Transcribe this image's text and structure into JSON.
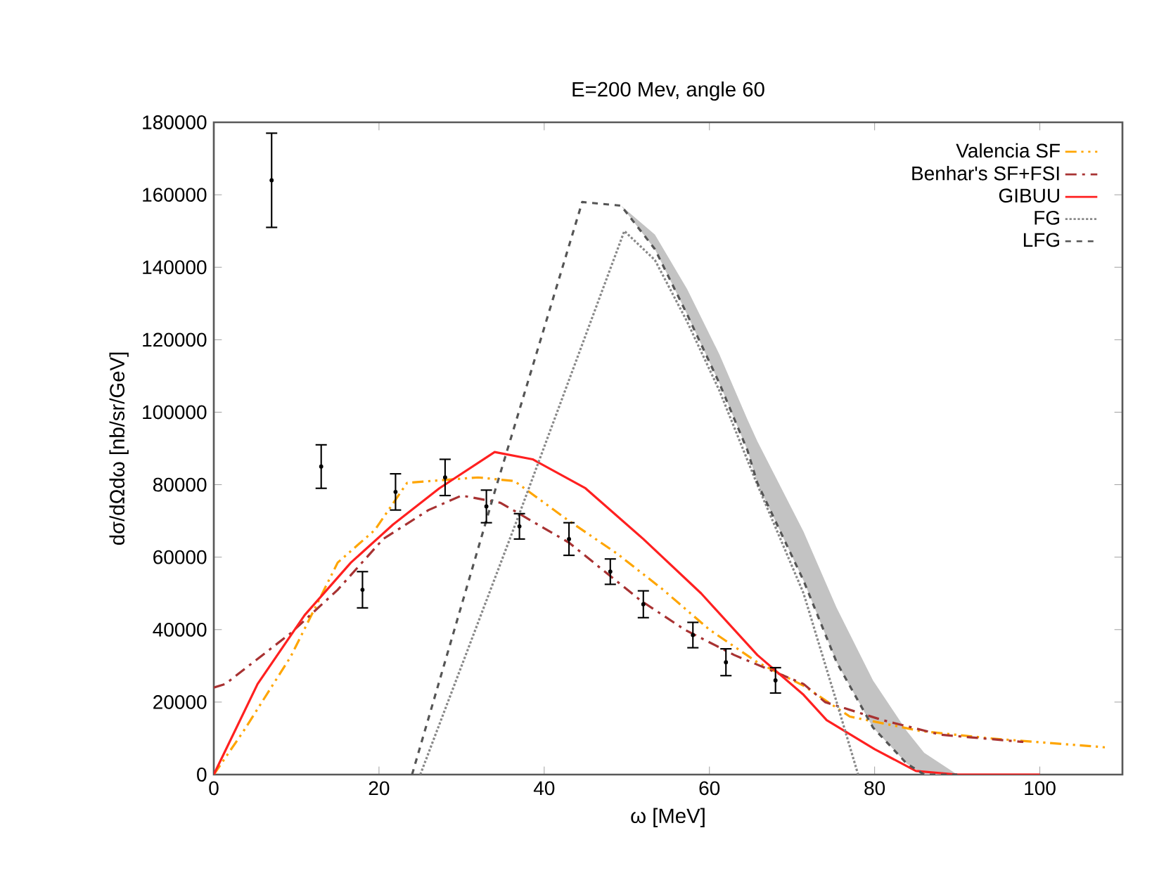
{
  "chart_data": {
    "type": "line",
    "title": "E=200 Mev, angle 60",
    "xlabel": "ω [MeV]",
    "ylabel": "dσ/dΩdω [nb/sr/GeV]",
    "xlim": [
      0,
      110
    ],
    "ylim": [
      0,
      180000
    ],
    "xticks": [
      0,
      20,
      40,
      60,
      80,
      100
    ],
    "yticks": [
      0,
      20000,
      40000,
      60000,
      80000,
      100000,
      120000,
      140000,
      160000,
      180000
    ],
    "legend": "top right",
    "grid": false,
    "series": [
      {
        "name": "Valencia SF",
        "color": "#ffa500",
        "line_style": "dashdotdotted",
        "x": [
          0,
          3.6,
          9.3,
          15,
          19.5,
          23.4,
          32,
          36.4,
          43,
          48.8,
          54.4,
          60,
          65.8,
          71.4,
          77,
          85.6,
          94,
          108
        ],
        "values": [
          0,
          12000,
          32500,
          58500,
          67500,
          80500,
          82000,
          81000,
          70000,
          61000,
          51000,
          40000,
          31000,
          24500,
          16000,
          12000,
          10000,
          7500
        ]
      },
      {
        "name": "Benhar's SF+FSI",
        "color": "#a83232",
        "line_style": "dashdotted",
        "x": [
          0,
          1.4,
          9.3,
          15,
          20.5,
          26,
          30,
          34.7,
          43,
          51.7,
          57,
          63,
          71.4,
          74,
          81,
          88,
          98
        ],
        "values": [
          24000,
          25000,
          39000,
          51000,
          65000,
          73000,
          77000,
          75000,
          64000,
          48000,
          40000,
          33000,
          25000,
          20000,
          15000,
          11000,
          9000
        ]
      },
      {
        "name": "GIBUU",
        "color": "#ff2020",
        "line_style": "solid",
        "x": [
          0,
          5.3,
          11,
          16.6,
          21.7,
          27.3,
          34,
          38.6,
          45,
          52,
          59,
          65.8,
          71.4,
          74.2,
          80,
          85,
          90,
          100
        ],
        "values": [
          0,
          25000,
          44000,
          58500,
          69000,
          79000,
          89000,
          87000,
          79000,
          65000,
          50000,
          33000,
          22000,
          15000,
          7000,
          1000,
          0,
          0
        ]
      },
      {
        "name": "FG",
        "color": "#888888",
        "line_style": "dotted",
        "x": [
          25,
          37,
          49.7,
          53.4,
          57.3,
          61.2,
          65.8,
          71.4,
          75.4,
          78
        ],
        "values": [
          0,
          72000,
          150000,
          142000,
          125000,
          106000,
          80000,
          50000,
          20000,
          0
        ]
      },
      {
        "name": "LFG",
        "color": "#555555",
        "line_style": "dashed",
        "x": [
          24,
          34,
          44.6,
          49.3,
          53.4,
          57.3,
          61.2,
          64.6,
          65.8,
          71.4,
          75.4,
          79.8,
          83.9,
          86,
          90
        ],
        "values": [
          0,
          78000,
          158000,
          157000,
          145000,
          127000,
          108000,
          89500,
          80500,
          53500,
          31000,
          13000,
          3000,
          0,
          0
        ],
        "lower": [
          0,
          78000,
          158000,
          157000,
          145000,
          127000,
          108000,
          89500,
          80500,
          53500,
          31000,
          13000,
          3000,
          0,
          0
        ],
        "upper": [
          0,
          78000,
          158000,
          157000,
          149000,
          134000,
          116000,
          98000,
          92000,
          67000,
          46000,
          26000,
          12000,
          6000,
          0
        ]
      },
      {
        "type": "scatter",
        "color": "#000000",
        "x": [
          7,
          13,
          18,
          22,
          28,
          33,
          37,
          43,
          48,
          52,
          58,
          62,
          68
        ],
        "values": [
          164000,
          85000,
          51000,
          78000,
          82000,
          74000,
          68500,
          65000,
          56000,
          47000,
          38500,
          31000,
          26000
        ],
        "errors": [
          13000,
          6000,
          5000,
          5000,
          5000,
          4500,
          3500,
          4500,
          3500,
          3700,
          3500,
          3700,
          3500
        ]
      }
    ]
  }
}
